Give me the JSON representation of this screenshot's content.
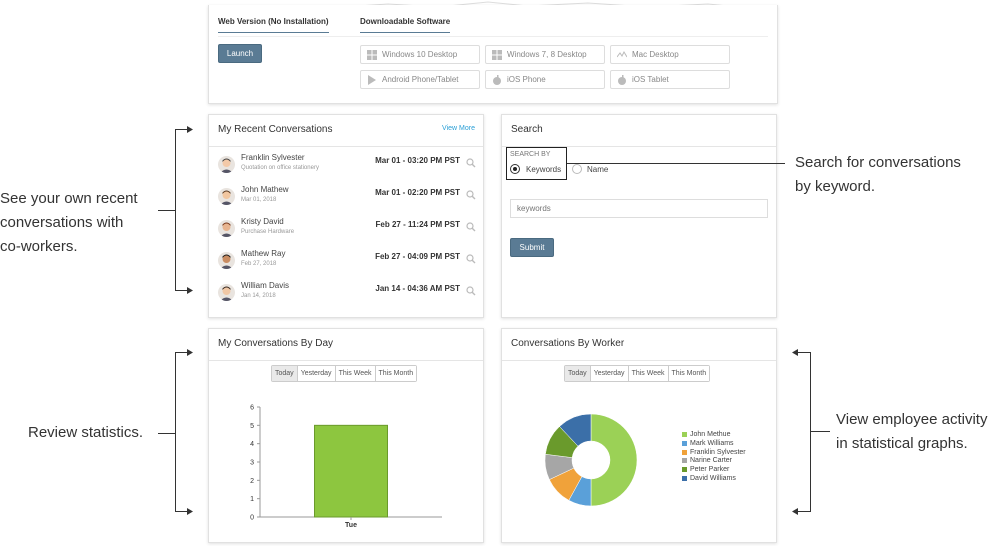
{
  "download_panel": {
    "tab_web": "Web Version (No Installation)",
    "tab_download": "Downloadable Software",
    "launch_label": "Launch",
    "buttons": [
      {
        "label": "Windows 10 Desktop",
        "icon": "windows-icon"
      },
      {
        "label": "Windows 7, 8 Desktop",
        "icon": "windows-icon"
      },
      {
        "label": "Mac Desktop",
        "icon": "mac-icon"
      },
      {
        "label": "Android Phone/Tablet",
        "icon": "android-icon"
      },
      {
        "label": "iOS Phone",
        "icon": "apple-icon"
      },
      {
        "label": "iOS Tablet",
        "icon": "apple-icon"
      }
    ]
  },
  "recent": {
    "title": "My Recent Conversations",
    "view_more": "View More",
    "items": [
      {
        "name": "Franklin Sylvester",
        "sub": "Quotation on office stationery",
        "date": "Mar 01 - 03:20 PM PST"
      },
      {
        "name": "John Mathew",
        "sub": "Mar 01, 2018",
        "date": "Mar 01 - 02:20 PM PST"
      },
      {
        "name": "Kristy David",
        "sub": "Purchase Hardware",
        "date": "Feb 27 - 11:24 PM PST"
      },
      {
        "name": "Mathew Ray",
        "sub": "Feb 27, 2018",
        "date": "Feb 27 - 04:09 PM PST"
      },
      {
        "name": "William Davis",
        "sub": "Jan 14, 2018",
        "date": "Jan 14 - 04:36 AM PST"
      }
    ]
  },
  "search": {
    "title": "Search",
    "search_by": "SEARCH BY",
    "opt_keywords": "Keywords",
    "opt_name": "Name",
    "placeholder": "keywords",
    "submit": "Submit"
  },
  "by_day": {
    "title": "My Conversations By Day",
    "segments": [
      "Today",
      "Yesterday",
      "This Week",
      "This Month"
    ],
    "active": "Today"
  },
  "by_worker": {
    "title": "Conversations By Worker",
    "segments": [
      "Today",
      "Yesterday",
      "This Week",
      "This Month"
    ],
    "active": "Today"
  },
  "notes": {
    "recent_line1": "See your own recent",
    "recent_line2": "conversations with",
    "recent_line3": "co-workers.",
    "search_line1": "Search for conversations",
    "search_line2": "by keyword.",
    "stats": "Review statistics.",
    "activity_line1": "View employee activity",
    "activity_line2": "in statistical graphs."
  },
  "chart_data": [
    {
      "type": "bar",
      "categories": [
        "Tue"
      ],
      "values": [
        5
      ],
      "ylim": [
        0,
        6
      ],
      "yticks": [
        "0",
        "1",
        "2",
        "3",
        "4",
        "5",
        "6"
      ],
      "bar_color": "#8dc63f"
    },
    {
      "type": "pie",
      "donut": true,
      "series": [
        {
          "name": "John Methue",
          "value": 50,
          "color": "#9bd156"
        },
        {
          "name": "Mark Williams",
          "value": 8,
          "color": "#5aa0d9"
        },
        {
          "name": "Franklin Sylvester",
          "value": 10,
          "color": "#f0a23a"
        },
        {
          "name": "Narine Carter",
          "value": 9,
          "color": "#a6a6a6"
        },
        {
          "name": "Peter Parker",
          "value": 11,
          "color": "#6a9a2c"
        },
        {
          "name": "David Williams",
          "value": 12,
          "color": "#3b6fa8"
        }
      ]
    }
  ]
}
